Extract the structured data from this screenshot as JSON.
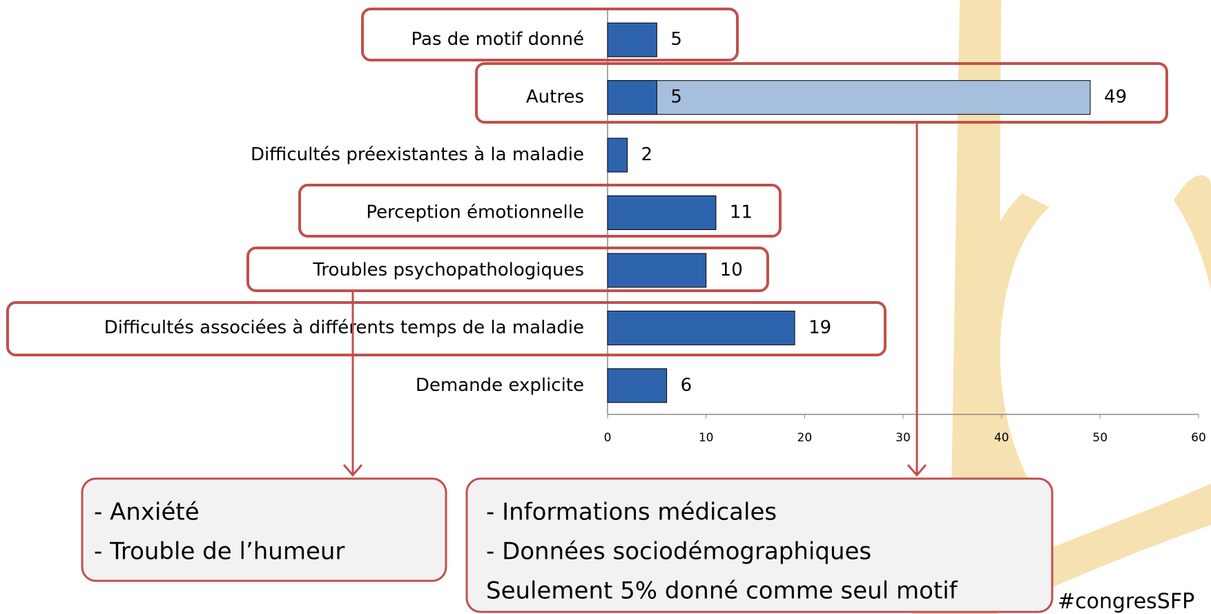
{
  "chart_data": {
    "type": "bar",
    "orientation": "horizontal",
    "categories": [
      "Pas de motif donné",
      "Autres",
      "Difficultés préexistantes à la maladie",
      "Perception émotionnelle",
      "Troubles psychopathologiques",
      "Difficultés associées à différents temps de la maladie",
      "Demande explicite"
    ],
    "series": [
      {
        "color": "#a5bfdd",
        "values": [
          null,
          49,
          null,
          null,
          null,
          null,
          null
        ]
      },
      {
        "color": "#2e64ae",
        "values": [
          5,
          5,
          2,
          11,
          10,
          19,
          6
        ]
      }
    ],
    "xlim": [
      0,
      60
    ],
    "xticks": [
      0,
      10,
      20,
      30,
      40,
      50,
      60
    ]
  },
  "callouts": [
    {
      "lines": [
        "- Anxiété",
        "- Trouble de l’humeur"
      ]
    },
    {
      "lines": [
        "- Informations médicales",
        "- Données sociodémographiques",
        "Seulement 5% donné comme seul motif"
      ]
    }
  ],
  "footer": "#congresSFP"
}
